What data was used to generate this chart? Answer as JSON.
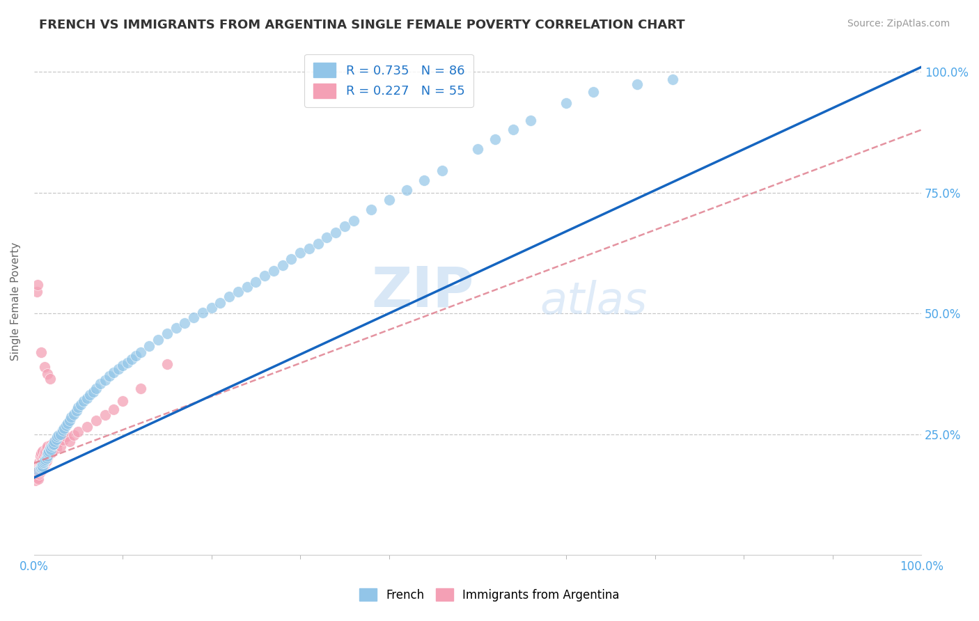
{
  "title": "FRENCH VS IMMIGRANTS FROM ARGENTINA SINGLE FEMALE POVERTY CORRELATION CHART",
  "source": "Source: ZipAtlas.com",
  "ylabel": "Single Female Poverty",
  "xlim": [
    0,
    1
  ],
  "ylim": [
    0,
    1.05
  ],
  "watermark": "ZIPatlas",
  "legend1_label": "R = 0.735   N = 86",
  "legend2_label": "R = 0.227   N = 55",
  "blue_color": "#92C5E8",
  "pink_color": "#F4A0B5",
  "line_blue": "#1565C0",
  "line_pink": "#E08090",
  "title_color": "#333333",
  "axis_color": "#4DA6E8",
  "french_x": [
    0.005,
    0.007,
    0.008,
    0.009,
    0.01,
    0.01,
    0.011,
    0.012,
    0.013,
    0.014,
    0.015,
    0.015,
    0.016,
    0.017,
    0.018,
    0.019,
    0.02,
    0.021,
    0.022,
    0.023,
    0.025,
    0.026,
    0.028,
    0.03,
    0.032,
    0.034,
    0.036,
    0.038,
    0.04,
    0.042,
    0.045,
    0.048,
    0.05,
    0.053,
    0.056,
    0.06,
    0.063,
    0.067,
    0.07,
    0.075,
    0.08,
    0.085,
    0.09,
    0.095,
    0.1,
    0.105,
    0.11,
    0.115,
    0.12,
    0.13,
    0.14,
    0.15,
    0.16,
    0.17,
    0.18,
    0.19,
    0.2,
    0.21,
    0.22,
    0.23,
    0.24,
    0.25,
    0.26,
    0.27,
    0.28,
    0.29,
    0.3,
    0.31,
    0.32,
    0.33,
    0.34,
    0.35,
    0.36,
    0.38,
    0.4,
    0.42,
    0.44,
    0.46,
    0.5,
    0.52,
    0.54,
    0.56,
    0.6,
    0.63,
    0.68,
    0.72
  ],
  "french_y": [
    0.175,
    0.18,
    0.182,
    0.185,
    0.183,
    0.19,
    0.192,
    0.195,
    0.198,
    0.2,
    0.205,
    0.21,
    0.212,
    0.215,
    0.22,
    0.218,
    0.225,
    0.228,
    0.23,
    0.235,
    0.24,
    0.245,
    0.248,
    0.25,
    0.258,
    0.262,
    0.268,
    0.272,
    0.278,
    0.285,
    0.292,
    0.298,
    0.305,
    0.312,
    0.318,
    0.325,
    0.332,
    0.338,
    0.345,
    0.355,
    0.362,
    0.37,
    0.378,
    0.385,
    0.392,
    0.398,
    0.405,
    0.412,
    0.42,
    0.432,
    0.445,
    0.458,
    0.47,
    0.48,
    0.492,
    0.502,
    0.512,
    0.522,
    0.535,
    0.545,
    0.555,
    0.565,
    0.578,
    0.588,
    0.6,
    0.612,
    0.625,
    0.635,
    0.645,
    0.658,
    0.668,
    0.68,
    0.692,
    0.715,
    0.735,
    0.755,
    0.775,
    0.795,
    0.84,
    0.86,
    0.88,
    0.9,
    0.935,
    0.958,
    0.975,
    0.985
  ],
  "argentina_x": [
    0.002,
    0.003,
    0.003,
    0.004,
    0.004,
    0.005,
    0.005,
    0.005,
    0.006,
    0.006,
    0.006,
    0.007,
    0.007,
    0.007,
    0.008,
    0.008,
    0.008,
    0.009,
    0.009,
    0.01,
    0.01,
    0.01,
    0.011,
    0.011,
    0.012,
    0.012,
    0.013,
    0.013,
    0.014,
    0.014,
    0.015,
    0.015,
    0.016,
    0.017,
    0.018,
    0.019,
    0.02,
    0.021,
    0.022,
    0.023,
    0.025,
    0.027,
    0.03,
    0.033,
    0.036,
    0.04,
    0.045,
    0.05,
    0.06,
    0.07,
    0.08,
    0.09,
    0.1,
    0.12,
    0.15
  ],
  "argentina_y": [
    0.155,
    0.165,
    0.175,
    0.16,
    0.18,
    0.158,
    0.17,
    0.185,
    0.168,
    0.178,
    0.192,
    0.172,
    0.188,
    0.205,
    0.175,
    0.19,
    0.21,
    0.182,
    0.198,
    0.178,
    0.195,
    0.215,
    0.185,
    0.205,
    0.188,
    0.21,
    0.192,
    0.215,
    0.195,
    0.22,
    0.2,
    0.225,
    0.205,
    0.215,
    0.222,
    0.228,
    0.212,
    0.22,
    0.228,
    0.235,
    0.22,
    0.232,
    0.225,
    0.238,
    0.245,
    0.235,
    0.248,
    0.255,
    0.265,
    0.278,
    0.29,
    0.302,
    0.318,
    0.345,
    0.395
  ],
  "argentina_outlier_x": [
    0.003,
    0.004,
    0.008,
    0.012,
    0.015,
    0.018
  ],
  "argentina_outlier_y": [
    0.545,
    0.56,
    0.42,
    0.39,
    0.375,
    0.365
  ],
  "blue_line_x0": 0.0,
  "blue_line_y0": 0.16,
  "blue_line_x1": 1.0,
  "blue_line_y1": 1.01,
  "pink_line_x0": 0.0,
  "pink_line_y0": 0.19,
  "pink_line_x1": 1.0,
  "pink_line_y1": 0.88
}
